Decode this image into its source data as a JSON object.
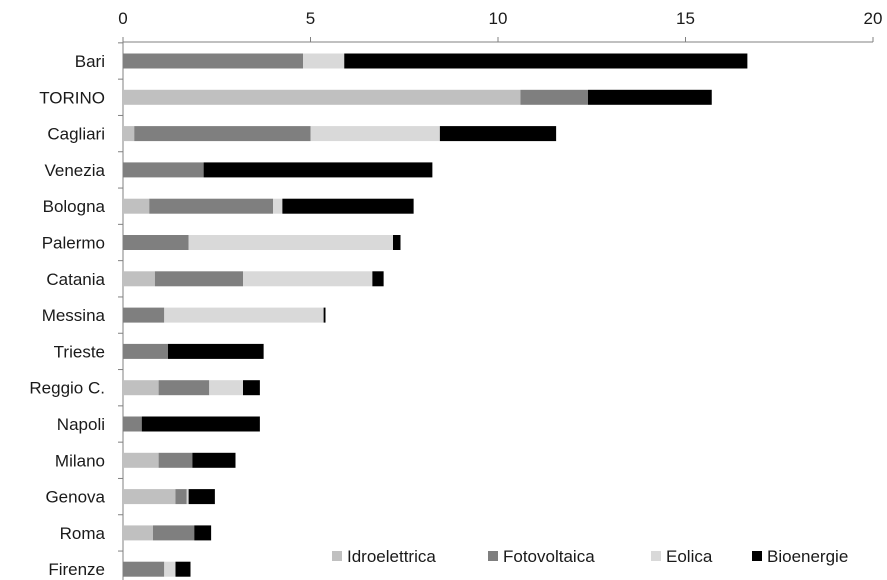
{
  "chart_data": {
    "type": "bar",
    "orientation": "horizontal",
    "stacked": true,
    "categories": [
      "Bari",
      "TORINO",
      "Cagliari",
      "Venezia",
      "Bologna",
      "Palermo",
      "Catania",
      "Messina",
      "Trieste",
      "Reggio C.",
      "Napoli",
      "Milano",
      "Genova",
      "Roma",
      "Firenze"
    ],
    "series": [
      {
        "name": "Idroelettrica",
        "color": "#c0c0c0",
        "values": [
          0.0,
          10.6,
          0.3,
          0.0,
          0.7,
          0.0,
          0.85,
          0.0,
          0.0,
          0.95,
          0.0,
          0.95,
          1.4,
          0.8,
          0.0
        ]
      },
      {
        "name": "Fotovoltaica",
        "color": "#7f7f7f",
        "values": [
          4.8,
          1.8,
          4.7,
          2.15,
          3.3,
          1.75,
          2.35,
          1.1,
          1.2,
          1.35,
          0.5,
          0.9,
          0.3,
          1.1,
          1.1
        ]
      },
      {
        "name": "Eolica",
        "color": "#d9d9d9",
        "values": [
          1.1,
          0.0,
          3.45,
          0.0,
          0.25,
          5.45,
          3.45,
          4.25,
          0.0,
          0.9,
          0.0,
          0.0,
          0.05,
          0.0,
          0.3
        ]
      },
      {
        "name": "Bioenergie",
        "color": "#000000",
        "values": [
          10.75,
          3.3,
          3.1,
          6.1,
          3.5,
          0.2,
          0.3,
          0.05,
          2.55,
          0.45,
          3.15,
          1.15,
          0.7,
          0.45,
          0.4
        ]
      }
    ],
    "xlim": [
      0,
      20
    ],
    "xticks": [
      "0",
      "5",
      "10",
      "15",
      "20"
    ],
    "axis_position": "top",
    "legend_position": "bottom-right",
    "grid": false
  }
}
